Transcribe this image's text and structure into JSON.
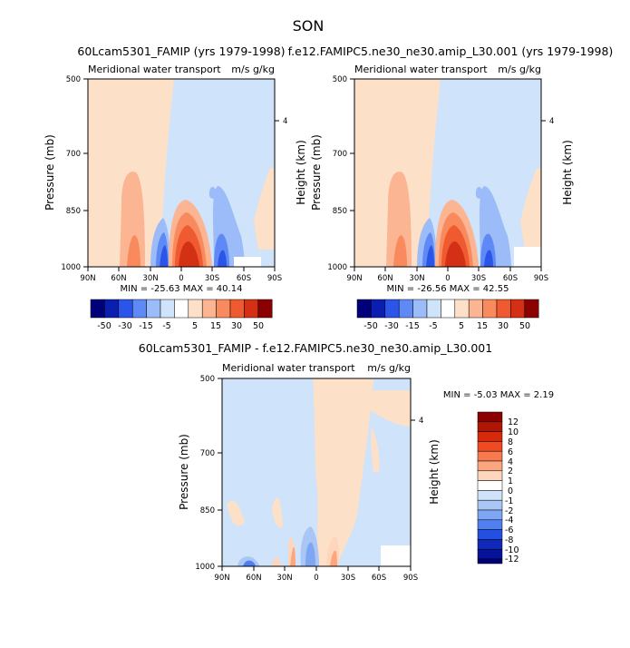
{
  "figure": {
    "title": "SON"
  },
  "chart_data": [
    {
      "type": "heatmap",
      "title": "60Lcam5301_FAMIP (yrs 1979-1998)",
      "subtitle": "Meridional water transport",
      "units": "m/s g/kg",
      "ylabel": "Pressure (mb)",
      "ylabel_right": "Height (km)",
      "x_ticks": [
        "90N",
        "60N",
        "30N",
        "0",
        "30S",
        "60S",
        "90S"
      ],
      "y_ticks": [
        "500",
        "700",
        "850",
        "1000"
      ],
      "y_right_ticks": [
        "4"
      ],
      "stats": "MIN = -25.63  MAX = 40.14",
      "contour_levels": [
        "-50",
        "-30",
        "-15",
        "-5",
        "5",
        "15",
        "30",
        "50"
      ]
    },
    {
      "type": "heatmap",
      "title": "f.e12.FAMIPC5.ne30_ne30.amip_L30.001 (yrs 1979-1998)",
      "subtitle": "Meridional water transport",
      "units": "m/s g/kg",
      "ylabel": "Pressure (mb)",
      "ylabel_right": "Height (km)",
      "x_ticks": [
        "90N",
        "60N",
        "30N",
        "0",
        "30S",
        "60S",
        "90S"
      ],
      "y_ticks": [
        "500",
        "700",
        "850",
        "1000"
      ],
      "y_right_ticks": [
        "4"
      ],
      "stats": "MIN = -26.56  MAX = 42.55",
      "contour_levels": [
        "-50",
        "-30",
        "-15",
        "-5",
        "5",
        "15",
        "30",
        "50"
      ]
    },
    {
      "type": "heatmap",
      "title": "60Lcam5301_FAMIP - f.e12.FAMIPC5.ne30_ne30.amip_L30.001",
      "subtitle": "Meridional water transport",
      "units": "m/s g/kg",
      "ylabel": "Pressure (mb)",
      "ylabel_right": "Height (km)",
      "x_ticks": [
        "90N",
        "60N",
        "30N",
        "0",
        "30S",
        "60S",
        "90S"
      ],
      "y_ticks": [
        "500",
        "700",
        "850",
        "1000"
      ],
      "y_right_ticks": [
        "4"
      ],
      "stats": "MIN = -5.03  MAX = 2.19",
      "contour_levels": [
        "12",
        "10",
        "8",
        "6",
        "4",
        "2",
        "1",
        "0",
        "-1",
        "-2",
        "-4",
        "-6",
        "-8",
        "-10",
        "-12"
      ]
    }
  ],
  "colors": {
    "top_scale": [
      "#00007a",
      "#0a1fb0",
      "#2a55e8",
      "#5f8af5",
      "#9bbcf8",
      "#cfe3fa",
      "#ffffff",
      "#fde0c8",
      "#fbb592",
      "#f88a5e",
      "#ef5a30",
      "#d43015",
      "#8b0000"
    ],
    "diff_scale": [
      "#8b0000",
      "#b01505",
      "#d62a0c",
      "#ef4a22",
      "#f77a4e",
      "#fba67e",
      "#fdd6bd",
      "#ffffff",
      "#cfe3fa",
      "#a9c6f7",
      "#7ea6f2",
      "#4f7ff0",
      "#2350e0",
      "#1128bd",
      "#05129a",
      "#00007a"
    ]
  }
}
